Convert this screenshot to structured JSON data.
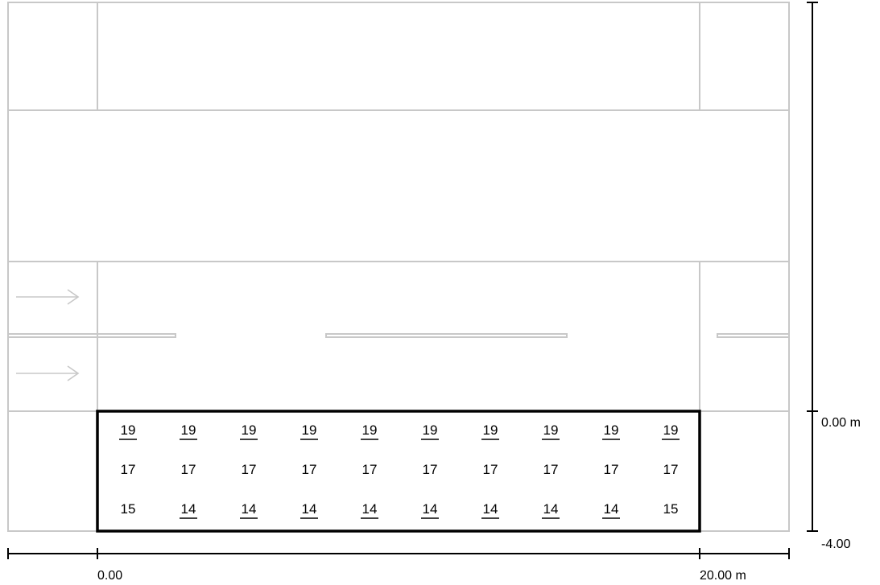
{
  "colors": {
    "road_line": "#c8c8c8",
    "field_border": "#000000",
    "text": "#000000"
  },
  "lane_arrows": [
    "arrow-right-icon",
    "arrow-right-icon"
  ],
  "field": {
    "rows": [
      {
        "cells": [
          {
            "value": "19",
            "underline": true
          },
          {
            "value": "19",
            "underline": true
          },
          {
            "value": "19",
            "underline": true
          },
          {
            "value": "19",
            "underline": true
          },
          {
            "value": "19",
            "underline": true
          },
          {
            "value": "19",
            "underline": true
          },
          {
            "value": "19",
            "underline": true
          },
          {
            "value": "19",
            "underline": true
          },
          {
            "value": "19",
            "underline": true
          },
          {
            "value": "19",
            "underline": true
          }
        ]
      },
      {
        "cells": [
          {
            "value": "17",
            "underline": false
          },
          {
            "value": "17",
            "underline": false
          },
          {
            "value": "17",
            "underline": false
          },
          {
            "value": "17",
            "underline": false
          },
          {
            "value": "17",
            "underline": false
          },
          {
            "value": "17",
            "underline": false
          },
          {
            "value": "17",
            "underline": false
          },
          {
            "value": "17",
            "underline": false
          },
          {
            "value": "17",
            "underline": false
          },
          {
            "value": "17",
            "underline": false
          }
        ]
      },
      {
        "cells": [
          {
            "value": "15",
            "underline": false
          },
          {
            "value": "14",
            "underline": true
          },
          {
            "value": "14",
            "underline": true
          },
          {
            "value": "14",
            "underline": true
          },
          {
            "value": "14",
            "underline": true
          },
          {
            "value": "14",
            "underline": true
          },
          {
            "value": "14",
            "underline": true
          },
          {
            "value": "14",
            "underline": true
          },
          {
            "value": "14",
            "underline": true
          },
          {
            "value": "15",
            "underline": false
          }
        ]
      }
    ]
  },
  "dimensions": {
    "x_start_label": "0.00",
    "x_end_label": "20.00 m",
    "y_top_label": "0.00 m",
    "y_bottom_label": "-4.00"
  }
}
